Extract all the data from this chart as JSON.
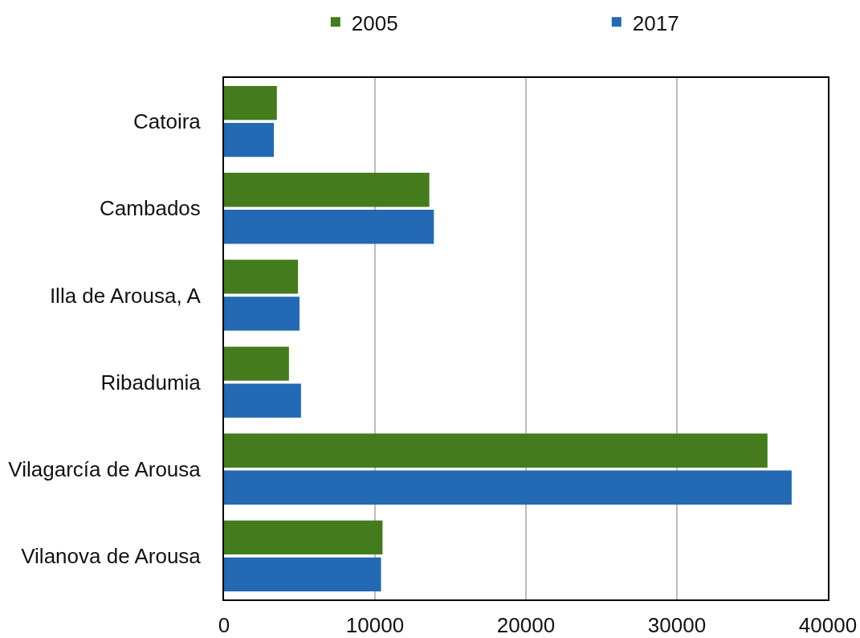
{
  "chart_data": {
    "type": "bar",
    "orientation": "horizontal",
    "categories": [
      "Catoira",
      "Cambados",
      "Illa de Arousa, A",
      "Ribadumia",
      "Vilagarcía de Arousa",
      "Vilanova de Arousa"
    ],
    "series": [
      {
        "name": "2005",
        "color": "#447c1d",
        "values": [
          3500,
          13600,
          4900,
          4300,
          36000,
          10500
        ]
      },
      {
        "name": "2017",
        "color": "#2369b4",
        "values": [
          3300,
          13900,
          5000,
          5100,
          37600,
          10400
        ]
      }
    ],
    "xlim": [
      0,
      40000
    ],
    "xticks": [
      0,
      10000,
      20000,
      30000,
      40000
    ],
    "grid": "x",
    "legend": "top"
  }
}
